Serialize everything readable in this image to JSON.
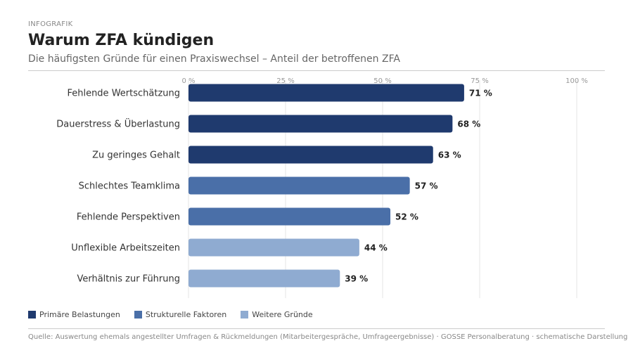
{
  "header": {
    "eyebrow": "INFOGRAFIK",
    "title": "Warum ZFA kündigen",
    "subtitle": "Die häufigsten Gründe für einen Praxiswechsel – Anteil der betroffenen ZFA"
  },
  "legend": {
    "items": [
      {
        "label": "Primäre Belastungen",
        "color": "#1f3a6e"
      },
      {
        "label": "Strukturelle Faktoren",
        "color": "#4a6fa8"
      },
      {
        "label": "Weitere Gründe",
        "color": "#8fabd1"
      }
    ]
  },
  "footnote": "Quelle: Auswertung ehemals angestellter Umfragen & Rückmeldungen (Mitarbeitergespräche, Umfrageergebnisse) · GOSSE Personalberatung · schematische Darstellung",
  "chart_data": {
    "type": "bar",
    "orientation": "horizontal",
    "title": "Warum ZFA kündigen",
    "subtitle": "Die häufigsten Gründe für einen Praxiswechsel – Anteil der betroffenen ZFA",
    "categories": [
      "Fehlende Wertschätzung",
      "Dauerstress & Überlastung",
      "Zu geringes Gehalt",
      "Schlechtes Teamklima",
      "Fehlende Perspektiven",
      "Unflexible Arbeitszeiten",
      "Verhältnis zur Führung"
    ],
    "values": [
      71,
      68,
      63,
      57,
      52,
      44,
      39
    ],
    "groups": [
      0,
      0,
      0,
      1,
      1,
      2,
      2
    ],
    "value_labels": [
      "71 %",
      "68 %",
      "63 %",
      "57 %",
      "52 %",
      "44 %",
      "39 %"
    ],
    "xlim": [
      0,
      100
    ],
    "xticks": [
      0,
      25,
      50,
      75,
      100
    ],
    "xtick_labels": [
      "0 %",
      "25 %",
      "50 %",
      "75 %",
      "100 %"
    ],
    "grid": true,
    "legend_position": "bottom-left"
  }
}
